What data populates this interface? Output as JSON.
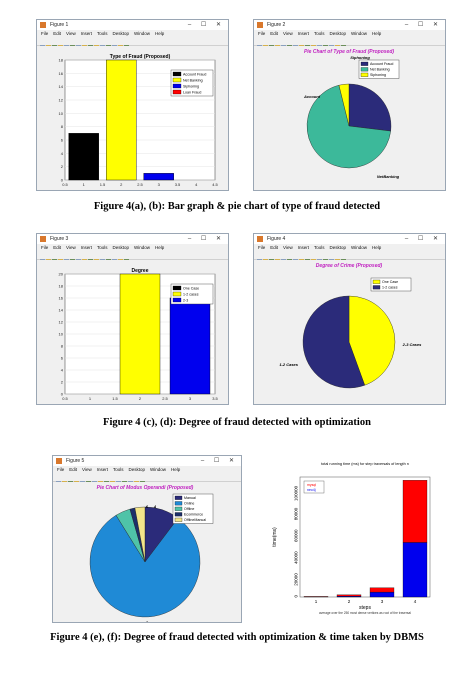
{
  "menu": [
    "File",
    "Edit",
    "View",
    "Insert",
    "Tools",
    "Desktop",
    "Window",
    "Help"
  ],
  "window_controls": "– ☐ ✕",
  "colors": {
    "black": "#000000",
    "yellow": "#ffff00",
    "blue": "#0000ee",
    "red": "#ff0000",
    "navy": "#2b2b7a",
    "teal": "#3cb99a",
    "titleMagenta": "#c020c0"
  },
  "fig1": {
    "title": "Figure 1",
    "plot_title": "Type of Fraud (Proposed)",
    "legend": [
      "Account Fraud",
      "Net Banking",
      "Siphoning",
      "Loan Fraud"
    ],
    "yticks": [
      "0",
      "2",
      "4",
      "6",
      "8",
      "10",
      "12",
      "14",
      "16",
      "18"
    ],
    "xticks": [
      "0.5",
      "1",
      "1.5",
      "2",
      "2.5",
      "3",
      "3.5",
      "4",
      "4.5"
    ]
  },
  "fig2": {
    "title": "Figure 2",
    "plot_title": "Pie Chart of Type of Fraud (Proposed)",
    "legend": [
      "Account Fraud",
      "Net Banking",
      "Siphoning"
    ],
    "labels": {
      "account": "Account",
      "siphoning": "Siphoning",
      "netbanking": "NetBanking"
    }
  },
  "fig3": {
    "title": "Figure 3",
    "plot_title": "Degree",
    "legend": [
      "One Case",
      "1-2 cases",
      "2-3"
    ],
    "yticks": [
      "0",
      "2",
      "4",
      "6",
      "8",
      "10",
      "12",
      "14",
      "16",
      "18",
      "20"
    ],
    "xticks": [
      "0.5",
      "1",
      "1.5",
      "2",
      "2.5",
      "3",
      "3.5"
    ]
  },
  "fig4": {
    "title": "Figure 4",
    "plot_title": "Degree of Crime (Proposed)",
    "legend": [
      "One Case",
      "1-2 cases"
    ],
    "labels": {
      "a": "2-3 Cases",
      "b": "1-2 Cases"
    }
  },
  "fig5": {
    "title": "Figure 5",
    "plot_title": "Pie Chart of Modus Operandi (Proposed)",
    "legend": [
      "Manual",
      "Online",
      "Offline",
      "Ecommerce",
      "OfflineManual"
    ],
    "labels": {
      "top1": "6",
      "top2": "4",
      "bottom": "2"
    }
  },
  "fig6": {
    "title": "total running time (ms) for step traversals of length n",
    "ylabel": "time(ms)",
    "xlabel": "steps",
    "subtitle": "average over the 250 most dense vertices as root of the traversal",
    "legend": [
      "mysql",
      "neo4j"
    ],
    "yticks": [
      "0",
      "20000",
      "40000",
      "60000",
      "80000",
      "100000"
    ],
    "xticks": [
      "1",
      "2",
      "3",
      "4"
    ]
  },
  "captions": {
    "a": "Figure 4(a), (b): Bar graph & pie chart of type of fraud detected",
    "b": "Figure 4 (c), (d): Degree of fraud detected with optimization",
    "c": "Figure 4 (e), (f): Degree of fraud detected with optimization  & time taken by DBMS"
  },
  "chart_data": [
    {
      "type": "bar",
      "title": "Type of Fraud (Proposed)",
      "categories": [
        "1",
        "2",
        "3",
        "4"
      ],
      "series": [
        {
          "name": "Account Fraud",
          "values": [
            7,
            0,
            0,
            0
          ]
        },
        {
          "name": "Net Banking",
          "values": [
            0,
            18,
            0,
            0
          ]
        },
        {
          "name": "Siphoning",
          "values": [
            0,
            0,
            1,
            0
          ]
        },
        {
          "name": "Loan Fraud",
          "values": [
            0,
            0,
            0,
            0
          ]
        }
      ],
      "xlim": [
        0.5,
        4.5
      ],
      "ylim": [
        0,
        18
      ]
    },
    {
      "type": "pie",
      "title": "Pie Chart of Type of Fraud (Proposed)",
      "labels": [
        "Account",
        "NetBanking",
        "Siphoning"
      ],
      "values": [
        7,
        18,
        1
      ]
    },
    {
      "type": "bar",
      "title": "Degree",
      "categories": [
        "1",
        "2",
        "3"
      ],
      "series": [
        {
          "name": "One Case",
          "values": [
            0,
            0,
            0
          ]
        },
        {
          "name": "1-2 cases",
          "values": [
            0,
            20,
            0
          ]
        },
        {
          "name": "2-3",
          "values": [
            0,
            0,
            16
          ]
        }
      ],
      "xlim": [
        0.5,
        3.5
      ],
      "ylim": [
        0,
        20
      ]
    },
    {
      "type": "pie",
      "title": "Degree of Crime (Proposed)",
      "labels": [
        "1-2 Cases",
        "2-3 Cases"
      ],
      "values": [
        20,
        16
      ]
    },
    {
      "type": "pie",
      "title": "Pie Chart of Modus Operandi (Proposed)",
      "labels": [
        "Manual",
        "Online",
        "Offline",
        "Ecommerce",
        "OfflineManual"
      ],
      "values": [
        7,
        55,
        3,
        1,
        2
      ]
    },
    {
      "type": "bar",
      "title": "total running time (ms) for step traversals of length n",
      "categories": [
        "1",
        "2",
        "3",
        "4"
      ],
      "series": [
        {
          "name": "mysql",
          "values": [
            300,
            1200,
            4000,
            57000
          ]
        },
        {
          "name": "neo4j",
          "values": [
            200,
            800,
            4500,
            50000
          ]
        }
      ],
      "ylim": [
        0,
        110000
      ],
      "stacked": true
    }
  ]
}
